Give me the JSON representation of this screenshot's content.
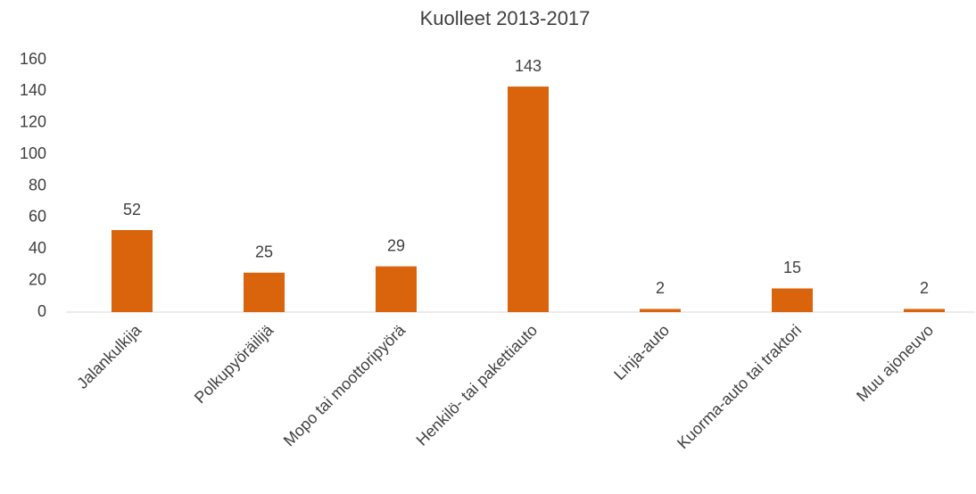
{
  "chart_data": {
    "type": "bar",
    "title": "Kuolleet 2013-2017",
    "categories": [
      "Jalankulkija",
      "Polkupyöräilijä",
      "Mopo tai moottoripyörä",
      "Henkilö- tai pakettiauto",
      "Linja-auto",
      "Kuorma-auto tai traktori",
      "Muu ajoneuvo"
    ],
    "values": [
      52,
      25,
      29,
      143,
      2,
      15,
      2
    ],
    "color": "#da640c",
    "ylim": [
      0,
      160
    ],
    "yticks": [
      0,
      20,
      40,
      60,
      80,
      100,
      120,
      140,
      160
    ],
    "grid": false
  }
}
